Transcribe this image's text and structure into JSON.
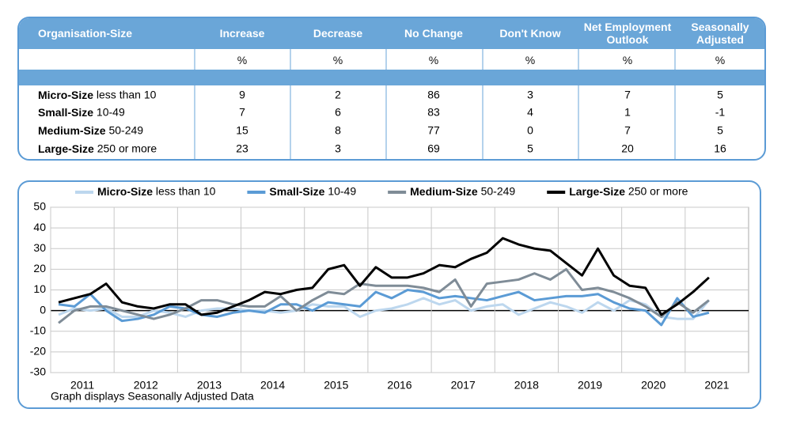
{
  "table": {
    "headers": [
      "Organisation-Size",
      "Increase",
      "Decrease",
      "No Change",
      "Don't Know",
      "Net Employment Outlook",
      "Seasonally Adjusted"
    ],
    "units": [
      "%",
      "%",
      "%",
      "%",
      "%",
      "%"
    ],
    "rows": [
      [
        "Micro-Size less than 10",
        9,
        2,
        86,
        3,
        7,
        5
      ],
      [
        "Small-Size 10-49",
        7,
        6,
        83,
        4,
        1,
        -1
      ],
      [
        "Medium-Size 50-249",
        15,
        8,
        77,
        0,
        7,
        5
      ],
      [
        "Large-Size 250 or more",
        23,
        3,
        69,
        5,
        20,
        16
      ]
    ]
  },
  "chart_data": {
    "type": "line",
    "note": "Graph displays Seasonally Adjusted Data",
    "x": [
      2011.125,
      2011.375,
      2011.625,
      2011.875,
      2012.125,
      2012.375,
      2012.625,
      2012.875,
      2013.125,
      2013.375,
      2013.625,
      2013.875,
      2014.125,
      2014.375,
      2014.625,
      2014.875,
      2015.125,
      2015.375,
      2015.625,
      2015.875,
      2016.125,
      2016.375,
      2016.625,
      2016.875,
      2017.125,
      2017.375,
      2017.625,
      2017.875,
      2018.125,
      2018.375,
      2018.625,
      2018.875,
      2019.125,
      2019.375,
      2019.625,
      2019.875,
      2020.125,
      2020.375,
      2020.625,
      2020.875,
      2021.125,
      2021.375
    ],
    "series": [
      {
        "name": "Micro-Size less than 10",
        "color": "#bdd7ee",
        "values": [
          -2,
          1,
          0,
          1,
          -3,
          -3,
          0,
          -1,
          -3,
          0,
          1,
          1,
          0,
          0,
          -1,
          0,
          3,
          2,
          2,
          -3,
          0,
          1,
          3,
          6,
          3,
          5,
          0,
          2,
          3,
          -2,
          1,
          4,
          2,
          -1,
          4,
          0,
          5,
          3,
          -3,
          -4,
          -4,
          5
        ]
      },
      {
        "name": "Small-Size 10-49",
        "color": "#5b9bd5",
        "values": [
          3,
          2,
          8,
          0,
          -5,
          -4,
          -2,
          2,
          1,
          -2,
          -3,
          -1,
          0,
          -1,
          3,
          3,
          0,
          4,
          3,
          2,
          9,
          6,
          10,
          9,
          6,
          7,
          6,
          5,
          7,
          9,
          5,
          6,
          7,
          7,
          8,
          4,
          1,
          0,
          -7,
          6,
          -3,
          -1
        ]
      },
      {
        "name": "Medium-Size 50-249",
        "color": "#7f8c97",
        "values": [
          -6,
          0,
          2,
          2,
          0,
          -2,
          -4,
          -2,
          1,
          5,
          5,
          3,
          2,
          2,
          7,
          0,
          5,
          9,
          8,
          13,
          12,
          12,
          12,
          11,
          9,
          15,
          2,
          13,
          14,
          15,
          18,
          15,
          20,
          10,
          11,
          9,
          6,
          2,
          -3,
          4,
          -1,
          5
        ]
      },
      {
        "name": "Large-Size 250 or more",
        "color": "#000000",
        "values": [
          4,
          6,
          8,
          13,
          4,
          2,
          1,
          3,
          3,
          -2,
          -1,
          2,
          5,
          9,
          8,
          10,
          11,
          20,
          22,
          12,
          21,
          16,
          16,
          18,
          22,
          21,
          25,
          28,
          35,
          32,
          30,
          29,
          23,
          17,
          30,
          17,
          12,
          11,
          -2,
          3,
          9,
          16
        ]
      }
    ],
    "xlim": [
      2011,
      2022
    ],
    "xticks": [
      {
        "value": 2011,
        "label": "2011"
      },
      {
        "value": 2012,
        "label": "2012"
      },
      {
        "value": 2013,
        "label": "2013"
      },
      {
        "value": 2014,
        "label": "2014"
      },
      {
        "value": 2015,
        "label": "2015"
      },
      {
        "value": 2016,
        "label": "2016"
      },
      {
        "value": 2017,
        "label": "2017"
      },
      {
        "value": 2018,
        "label": "2018"
      },
      {
        "value": 2019,
        "label": "2019"
      },
      {
        "value": 2020,
        "label": "2020"
      },
      {
        "value": 2021,
        "label": "2021"
      }
    ],
    "ylim": [
      -30,
      50
    ],
    "yticks": [
      -30,
      -20,
      -10,
      0,
      10,
      20,
      30,
      40,
      50
    ],
    "grid": true,
    "legend": "top"
  }
}
